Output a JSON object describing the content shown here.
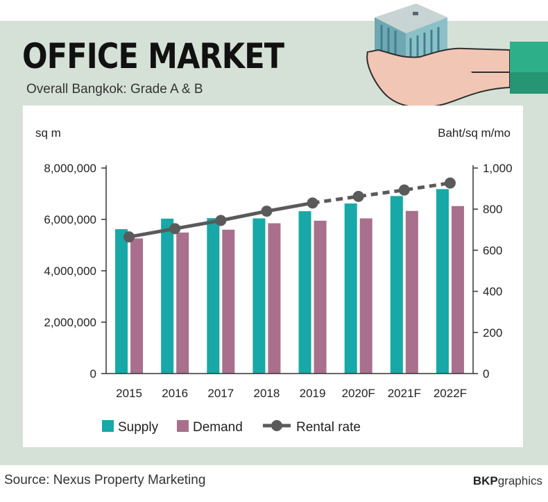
{
  "header": {
    "title": "OFFICE MARKET",
    "subtitle": "Overall Bangkok: Grade A & B"
  },
  "footer": {
    "source": "Source: Nexus Property Marketing",
    "brand_bold": "BKP",
    "brand_rest": "graphics"
  },
  "colors": {
    "supply": "#17a8a7",
    "demand": "#a8708d",
    "rental": "#5a5a5a",
    "frame": "#d5e1d6"
  },
  "chart_data": {
    "type": "bar",
    "categories": [
      "2015",
      "2016",
      "2017",
      "2018",
      "2019",
      "2020F",
      "2021F",
      "2022F"
    ],
    "series": [
      {
        "name": "Supply",
        "axis": "left",
        "values": [
          5620000,
          6030000,
          6050000,
          6040000,
          6320000,
          6620000,
          6910000,
          7180000
        ]
      },
      {
        "name": "Demand",
        "axis": "left",
        "values": [
          5260000,
          5490000,
          5600000,
          5850000,
          5950000,
          6040000,
          6330000,
          6520000
        ]
      },
      {
        "name": "Rental rate",
        "axis": "right",
        "type": "line",
        "values": [
          665,
          705,
          745,
          790,
          830,
          862,
          893,
          927
        ],
        "dashed_from_index": 4
      }
    ],
    "ylabel_left": "sq m",
    "ylabel_right": "Baht/sq m/mo",
    "ylim_left": [
      0,
      8000000
    ],
    "ylim_right": [
      0,
      1000
    ],
    "yticks_left": [
      "0",
      "2,000,000",
      "4,000,000",
      "6,000,000",
      "8,000,000"
    ],
    "yticks_right": [
      "0",
      "200",
      "400",
      "600",
      "800",
      "1,000"
    ],
    "legend": [
      "Supply",
      "Demand",
      "Rental rate"
    ],
    "legend_position": "bottom"
  }
}
